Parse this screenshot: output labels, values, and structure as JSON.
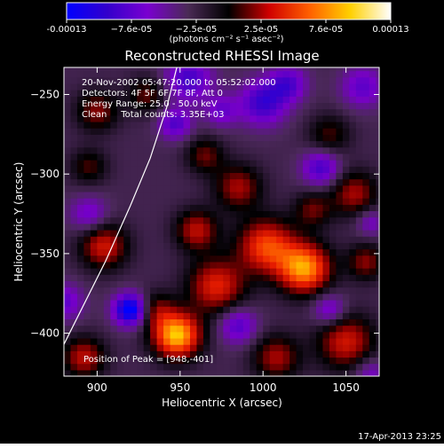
{
  "colors": {
    "background": "#000000",
    "foreground": "#ffffff",
    "limb": "#ffffff",
    "colorbar": [
      "#0000ff",
      "#3300cc",
      "#7a00d0",
      "#4a2a55",
      "#000000",
      "#d00000",
      "#ff6000",
      "#ffd000",
      "#ffffff"
    ]
  },
  "colorbar": {
    "tick_labels": [
      "-0.00013",
      "−7.6e-05",
      "−2.5e-05",
      "2.5e-05",
      "7.6e-05",
      "0.00013"
    ],
    "units_label": "(photons cm⁻² s⁻¹ asec⁻²)",
    "range": [
      -0.00013,
      0.00013
    ]
  },
  "info": {
    "line1": "20-Nov-2002 05:47:20.000 to 05:52:02.000",
    "line2": "Detectors: 4F 5F 6F 7F 8F, Att 0",
    "line3": "Energy Range: 25.0 - 50.0 keV",
    "line4": "Clean     Total counts: 3.35E+03",
    "peak": "Position of Peak = [948,-401]"
  },
  "footer": {
    "timestamp": "17-Apr-2013 23:25"
  },
  "chart_data": {
    "type": "heatmap",
    "title": "Reconstructed RHESSI Image",
    "xlabel": "Heliocentric X (arcsec)",
    "ylabel": "Heliocentric Y (arcsec)",
    "x_ticks": [
      900,
      950,
      1000,
      1050
    ],
    "y_ticks": [
      -250,
      -300,
      -350,
      -400
    ],
    "xlim": [
      880,
      1070
    ],
    "ylim": [
      -427,
      -233
    ],
    "grid": false,
    "peak": {
      "x": 948,
      "y": -401
    },
    "limb_points": [
      [
        880,
        -407
      ],
      [
        905,
        -355
      ],
      [
        920,
        -320
      ],
      [
        932,
        -290
      ],
      [
        942,
        -258
      ],
      [
        948,
        -233
      ]
    ],
    "blobs": [
      {
        "x": 948,
        "y": -401,
        "sigma": 10,
        "value": 1.0
      },
      {
        "x": 1025,
        "y": -359,
        "sigma": 11,
        "value": 0.9
      },
      {
        "x": 1002,
        "y": -345,
        "sigma": 12,
        "value": 0.7
      },
      {
        "x": 972,
        "y": -370,
        "sigma": 12,
        "value": 0.6
      },
      {
        "x": 904,
        "y": -345,
        "sigma": 10,
        "value": 0.55
      },
      {
        "x": 960,
        "y": -335,
        "sigma": 9,
        "value": 0.5
      },
      {
        "x": 1050,
        "y": -405,
        "sigma": 12,
        "value": 0.55
      },
      {
        "x": 1008,
        "y": -415,
        "sigma": 10,
        "value": 0.45
      },
      {
        "x": 892,
        "y": -415,
        "sigma": 9,
        "value": 0.5
      },
      {
        "x": 935,
        "y": -385,
        "sigma": 8,
        "value": 0.35
      },
      {
        "x": 985,
        "y": -308,
        "sigma": 10,
        "value": 0.45
      },
      {
        "x": 965,
        "y": -288,
        "sigma": 8,
        "value": 0.35
      },
      {
        "x": 900,
        "y": -260,
        "sigma": 9,
        "value": 0.4
      },
      {
        "x": 930,
        "y": -250,
        "sigma": 8,
        "value": 0.35
      },
      {
        "x": 1055,
        "y": -312,
        "sigma": 10,
        "value": 0.45
      },
      {
        "x": 1040,
        "y": -275,
        "sigma": 9,
        "value": 0.3
      },
      {
        "x": 1062,
        "y": -355,
        "sigma": 8,
        "value": 0.4
      },
      {
        "x": 1030,
        "y": -322,
        "sigma": 8,
        "value": 0.35
      },
      {
        "x": 895,
        "y": -295,
        "sigma": 8,
        "value": 0.3
      },
      {
        "x": 955,
        "y": -240,
        "sigma": 10,
        "value": -0.5
      },
      {
        "x": 1000,
        "y": -255,
        "sigma": 10,
        "value": -0.55
      },
      {
        "x": 1015,
        "y": -243,
        "sigma": 8,
        "value": -0.45
      },
      {
        "x": 1060,
        "y": -245,
        "sigma": 9,
        "value": -0.4
      },
      {
        "x": 1035,
        "y": -296,
        "sigma": 8,
        "value": -0.5
      },
      {
        "x": 947,
        "y": -268,
        "sigma": 7,
        "value": -0.45
      },
      {
        "x": 920,
        "y": -385,
        "sigma": 7,
        "value": -0.9
      },
      {
        "x": 880,
        "y": -380,
        "sigma": 8,
        "value": -0.4
      },
      {
        "x": 985,
        "y": -395,
        "sigma": 8,
        "value": -0.45
      },
      {
        "x": 1040,
        "y": -385,
        "sigma": 7,
        "value": -0.4
      },
      {
        "x": 895,
        "y": -325,
        "sigma": 8,
        "value": -0.35
      },
      {
        "x": 975,
        "y": -260,
        "sigma": 7,
        "value": -0.35
      },
      {
        "x": 1065,
        "y": -330,
        "sigma": 6,
        "value": -0.3
      },
      {
        "x": 1065,
        "y": -425,
        "sigma": 7,
        "value": -0.3
      }
    ]
  }
}
